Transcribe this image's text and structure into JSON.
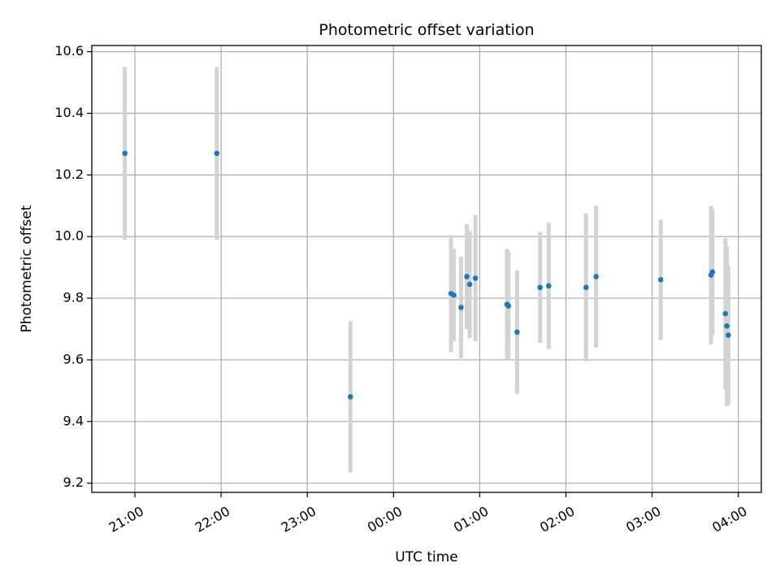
{
  "chart_data": {
    "type": "scatter",
    "title": "Photometric offset variation",
    "xlabel": "UTC time",
    "ylabel": "Photometric offset",
    "xlim": [
      "20:30",
      "04:16"
    ],
    "ylim": [
      9.17,
      10.62
    ],
    "x_ticks": [
      "21:00",
      "22:00",
      "23:00",
      "00:00",
      "01:00",
      "02:00",
      "03:00",
      "04:00"
    ],
    "y_ticks": [
      9.2,
      9.4,
      9.6,
      9.8,
      10.0,
      10.2,
      10.4,
      10.6
    ],
    "y_tick_labels": [
      "9.2",
      "9.4",
      "9.6",
      "9.8",
      "10.0",
      "10.2",
      "10.4",
      "10.6"
    ],
    "grid": true,
    "colors": {
      "point": "#1f77b4",
      "errorbar": "#d3d3d3",
      "grid": "#b0b0b0"
    },
    "points": [
      {
        "x": "20:53",
        "y": 10.27,
        "err": 0.28
      },
      {
        "x": "21:57",
        "y": 10.27,
        "err": 0.28
      },
      {
        "x": "23:30",
        "y": 9.48,
        "err": 0.245
      },
      {
        "x": "00:40",
        "y": 9.815,
        "err": 0.19
      },
      {
        "x": "00:42",
        "y": 9.81,
        "err": 0.15
      },
      {
        "x": "00:47",
        "y": 9.77,
        "err": 0.165
      },
      {
        "x": "00:51",
        "y": 9.87,
        "err": 0.17
      },
      {
        "x": "00:53",
        "y": 9.845,
        "err": 0.175
      },
      {
        "x": "00:57",
        "y": 9.865,
        "err": 0.205
      },
      {
        "x": "01:19",
        "y": 9.78,
        "err": 0.18
      },
      {
        "x": "01:20",
        "y": 9.775,
        "err": 0.175
      },
      {
        "x": "01:26",
        "y": 9.69,
        "err": 0.2
      },
      {
        "x": "01:42",
        "y": 9.835,
        "err": 0.18
      },
      {
        "x": "01:48",
        "y": 9.84,
        "err": 0.205
      },
      {
        "x": "02:14",
        "y": 9.835,
        "err": 0.24
      },
      {
        "x": "02:21",
        "y": 9.87,
        "err": 0.23
      },
      {
        "x": "03:06",
        "y": 9.86,
        "err": 0.195
      },
      {
        "x": "03:41",
        "y": 9.875,
        "err": 0.225
      },
      {
        "x": "03:42",
        "y": 9.885,
        "err": 0.205
      },
      {
        "x": "03:51",
        "y": 9.75,
        "err": 0.245
      },
      {
        "x": "03:52",
        "y": 9.71,
        "err": 0.26
      },
      {
        "x": "03:53",
        "y": 9.68,
        "err": 0.225
      }
    ]
  }
}
